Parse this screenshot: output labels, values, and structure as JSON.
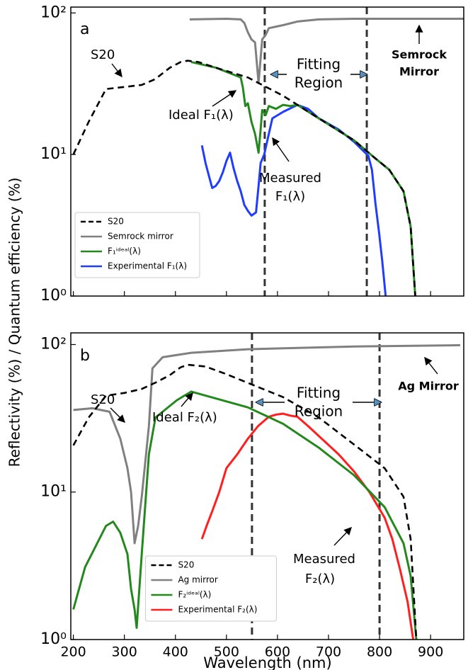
{
  "chart_data": [
    {
      "type": "line",
      "panel_label": "a",
      "ylabel": "Reflectivity (%) / Quantum efficiency (%)",
      "xlim": [
        195,
        965
      ],
      "ylim": [
        1,
        110
      ],
      "log_y": true,
      "xticks": [
        200,
        300,
        400,
        500,
        600,
        700,
        800,
        900
      ],
      "yticks": [
        {
          "value": 1,
          "label": "10⁰"
        },
        {
          "value": 10,
          "label": "10¹"
        },
        {
          "value": 100,
          "label": "10²"
        }
      ],
      "fit_lines": [
        575,
        775
      ],
      "legend": "lower left",
      "annotations": [
        [
          "S20"
        ],
        [
          "Ideal F₁(λ)"
        ],
        [
          "Measured",
          "F₁(λ)"
        ],
        [
          "Fitting",
          "Region"
        ],
        [
          "Semrock",
          "Mirror"
        ]
      ],
      "series": [
        {
          "name": "Semrock mirror",
          "color": "#808080",
          "x": [
            428,
            500,
            528,
            535,
            542,
            549,
            556,
            563,
            570,
            577,
            583,
            597,
            611,
            639,
            681,
            750,
            850,
            965
          ],
          "values": [
            90,
            91,
            90,
            85,
            73,
            65,
            62,
            32,
            65,
            70,
            78,
            80,
            82,
            87,
            90,
            91,
            91,
            91
          ]
        },
        {
          "name": "Experimental F₁(λ)",
          "color": "#1f3cff",
          "x": [
            452,
            459,
            466,
            472,
            479,
            486,
            493,
            500,
            507,
            514,
            521,
            528,
            535,
            542,
            549,
            558,
            563,
            567,
            574,
            583,
            590,
            611,
            639,
            660,
            681,
            720,
            750,
            778,
            785,
            792,
            799,
            805,
            812
          ],
          "values": [
            11.6,
            8.7,
            7,
            5.8,
            6,
            6.5,
            7.5,
            9,
            10.3,
            8,
            6.5,
            5.5,
            4.4,
            4,
            3.7,
            3.9,
            6,
            8.7,
            10,
            14,
            18,
            20,
            22.4,
            21,
            18,
            15,
            12.3,
            9.8,
            7.8,
            4.5,
            2.8,
            1.8,
            1
          ]
        },
        {
          "name": "F₁ⁱᵈᵉᵃˡ(λ)",
          "color": "#23891c",
          "x": [
            431,
            480,
            528,
            532,
            537,
            542,
            549,
            556,
            563,
            567,
            570,
            577,
            583,
            597,
            611,
            625,
            639,
            681,
            750,
            790,
            819,
            847,
            861,
            870
          ],
          "values": [
            45,
            41,
            35,
            30,
            22,
            23,
            17,
            14,
            10.3,
            15,
            20.6,
            19,
            22,
            21,
            22.4,
            22,
            22.4,
            18,
            12.6,
            9.5,
            7.8,
            5.5,
            3.1,
            1
          ]
        },
        {
          "name": "S20",
          "color": "#000000",
          "linestyle": "dashed",
          "x": [
            200,
            230,
            264,
            300,
            334,
            360,
            389,
            410,
            424,
            445,
            480,
            542,
            611,
            681,
            750,
            790,
            819,
            847,
            861,
            870
          ],
          "values": [
            10,
            17,
            29,
            30,
            31,
            34,
            41,
            45,
            46,
            45,
            41,
            35,
            26,
            18,
            12.6,
            9.5,
            7.8,
            5.5,
            3.1,
            1
          ]
        }
      ]
    },
    {
      "type": "line",
      "panel_label": "b",
      "xlabel": "Wavelength (nm)",
      "xlim": [
        195,
        965
      ],
      "ylim": [
        1,
        120
      ],
      "log_y": true,
      "xticks": [
        200,
        300,
        400,
        500,
        600,
        700,
        800,
        900
      ],
      "yticks": [
        {
          "value": 1,
          "label": "10⁰"
        },
        {
          "value": 10,
          "label": "10¹"
        },
        {
          "value": 100,
          "label": "10²"
        }
      ],
      "fit_lines": [
        550,
        800
      ],
      "legend": "lower center",
      "annotations": [
        [
          "S20"
        ],
        [
          "Ideal F₂(λ)"
        ],
        [
          "Measured",
          "F₂(λ)"
        ],
        [
          "Fitting",
          "Region"
        ],
        [
          "Ag Mirror"
        ]
      ],
      "series": [
        {
          "name": "Ag mirror",
          "color": "#808080",
          "x": [
            200,
            237,
            271,
            292,
            306,
            313,
            320,
            327,
            334,
            341,
            348,
            355,
            375,
            431,
            542,
            750,
            958
          ],
          "values": [
            36,
            37,
            35,
            23,
            14.5,
            10,
            4.5,
            5.9,
            9.3,
            16,
            28,
            69,
            82,
            88,
            93,
            97,
            99
          ]
        },
        {
          "name": "Experimental F₂(λ)",
          "color": "#ff1f1f",
          "x": [
            452,
            462,
            472,
            486,
            500,
            521,
            542,
            562,
            583,
            597,
            611,
            625,
            639,
            660,
            681,
            720,
            750,
            780,
            810,
            825,
            840,
            855,
            866
          ],
          "values": [
            4.8,
            6,
            7.4,
            10,
            14.5,
            18,
            23,
            28,
            32.4,
            33.5,
            34,
            33,
            32.4,
            28,
            24,
            18,
            13.8,
            10,
            6.7,
            4.8,
            3,
            1.8,
            1
          ]
        },
        {
          "name": "F₂ⁱᵈᵉᵃˡ(λ)",
          "color": "#23891c",
          "x": [
            200,
            223,
            264,
            278,
            292,
            306,
            313,
            320,
            324,
            334,
            348,
            361,
            403,
            431,
            542,
            611,
            681,
            750,
            810,
            847,
            861,
            872
          ],
          "values": [
            1.6,
            3.1,
            5.9,
            6.3,
            5.3,
            3.8,
            2.2,
            1.6,
            1.2,
            3.8,
            18,
            32,
            42,
            48,
            37.5,
            29,
            20,
            13,
            7.9,
            4.5,
            2.7,
            1
          ]
        },
        {
          "name": "S20",
          "color": "#000000",
          "linestyle": "dashed",
          "x": [
            200,
            230,
            264,
            300,
            334,
            360,
            389,
            410,
            424,
            459,
            500,
            542,
            611,
            681,
            750,
            810,
            847,
            861,
            872
          ],
          "values": [
            20.7,
            32,
            45,
            47,
            50,
            55,
            62,
            70,
            73,
            71,
            63,
            55,
            44,
            32,
            21,
            14.5,
            9.3,
            4.8,
            1
          ]
        }
      ]
    }
  ]
}
